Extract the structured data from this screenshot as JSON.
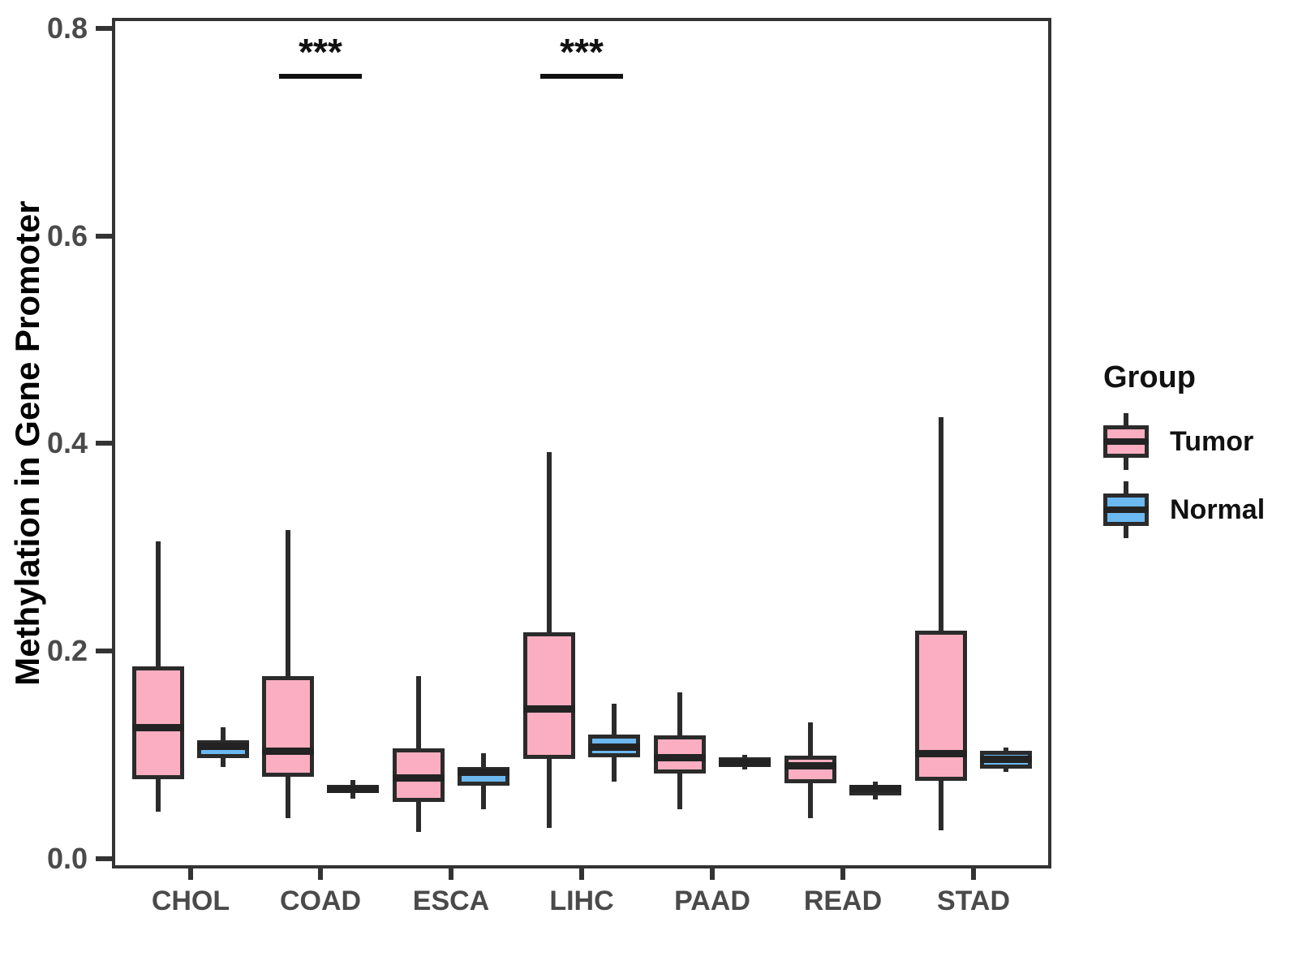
{
  "y_axis": {
    "label": "Methylation in Gene Promoter",
    "ticks": [
      "0.0",
      "0.2",
      "0.4",
      "0.6",
      "0.8"
    ],
    "tick_values": [
      0,
      0.2,
      0.4,
      0.6,
      0.8
    ]
  },
  "legend": {
    "title": "Group",
    "items": [
      {
        "label": "Tumor",
        "color": "#FBAEC1"
      },
      {
        "label": "Normal",
        "color": "#6CB8F0"
      }
    ]
  },
  "colors": {
    "tumor_fill": "#FBAEC1",
    "normal_fill": "#6CB8F0",
    "line": "#2b2b2b",
    "axis_text": "#4a4a4a"
  },
  "chart_data": {
    "type": "boxplot",
    "title": "",
    "xlabel": "",
    "ylabel": "Methylation in Gene Promoter",
    "ylim": [
      0,
      0.8
    ],
    "grid": false,
    "legend_position": "right",
    "categories": [
      "CHOL",
      "COAD",
      "ESCA",
      "LIHC",
      "PAAD",
      "READ",
      "STAD"
    ],
    "series": [
      {
        "name": "Tumor",
        "color": "#FBAEC1",
        "boxes": [
          {
            "whisker_low": 0.045,
            "q1": 0.077,
            "median": 0.127,
            "q3": 0.185,
            "whisker_high": 0.306
          },
          {
            "whisker_low": 0.039,
            "q1": 0.079,
            "median": 0.104,
            "q3": 0.176,
            "whisker_high": 0.317
          },
          {
            "whisker_low": 0.026,
            "q1": 0.055,
            "median": 0.078,
            "q3": 0.106,
            "whisker_high": 0.176
          },
          {
            "whisker_low": 0.03,
            "q1": 0.096,
            "median": 0.145,
            "q3": 0.218,
            "whisker_high": 0.392
          },
          {
            "whisker_low": 0.048,
            "q1": 0.082,
            "median": 0.098,
            "q3": 0.119,
            "whisker_high": 0.16
          },
          {
            "whisker_low": 0.039,
            "q1": 0.073,
            "median": 0.09,
            "q3": 0.099,
            "whisker_high": 0.131
          },
          {
            "whisker_low": 0.027,
            "q1": 0.075,
            "median": 0.102,
            "q3": 0.22,
            "whisker_high": 0.425
          }
        ]
      },
      {
        "name": "Normal",
        "color": "#6CB8F0",
        "boxes": [
          {
            "whisker_low": 0.088,
            "q1": 0.097,
            "median": 0.109,
            "q3": 0.114,
            "whisker_high": 0.127
          },
          {
            "whisker_low": 0.058,
            "q1": 0.063,
            "median": 0.067,
            "q3": 0.071,
            "whisker_high": 0.076
          },
          {
            "whisker_low": 0.048,
            "q1": 0.07,
            "median": 0.084,
            "q3": 0.088,
            "whisker_high": 0.102
          },
          {
            "whisker_low": 0.074,
            "q1": 0.098,
            "median": 0.108,
            "q3": 0.12,
            "whisker_high": 0.149
          },
          {
            "whisker_low": 0.086,
            "q1": 0.088,
            "median": 0.093,
            "q3": 0.098,
            "whisker_high": 0.1
          },
          {
            "whisker_low": 0.057,
            "q1": 0.061,
            "median": 0.068,
            "q3": 0.071,
            "whisker_high": 0.074
          },
          {
            "whisker_low": 0.084,
            "q1": 0.087,
            "median": 0.096,
            "q3": 0.104,
            "whisker_high": 0.107
          }
        ]
      }
    ],
    "significance": [
      {
        "category": "COAD",
        "label": "***",
        "y": 0.756
      },
      {
        "category": "LIHC",
        "label": "***",
        "y": 0.756
      }
    ]
  }
}
